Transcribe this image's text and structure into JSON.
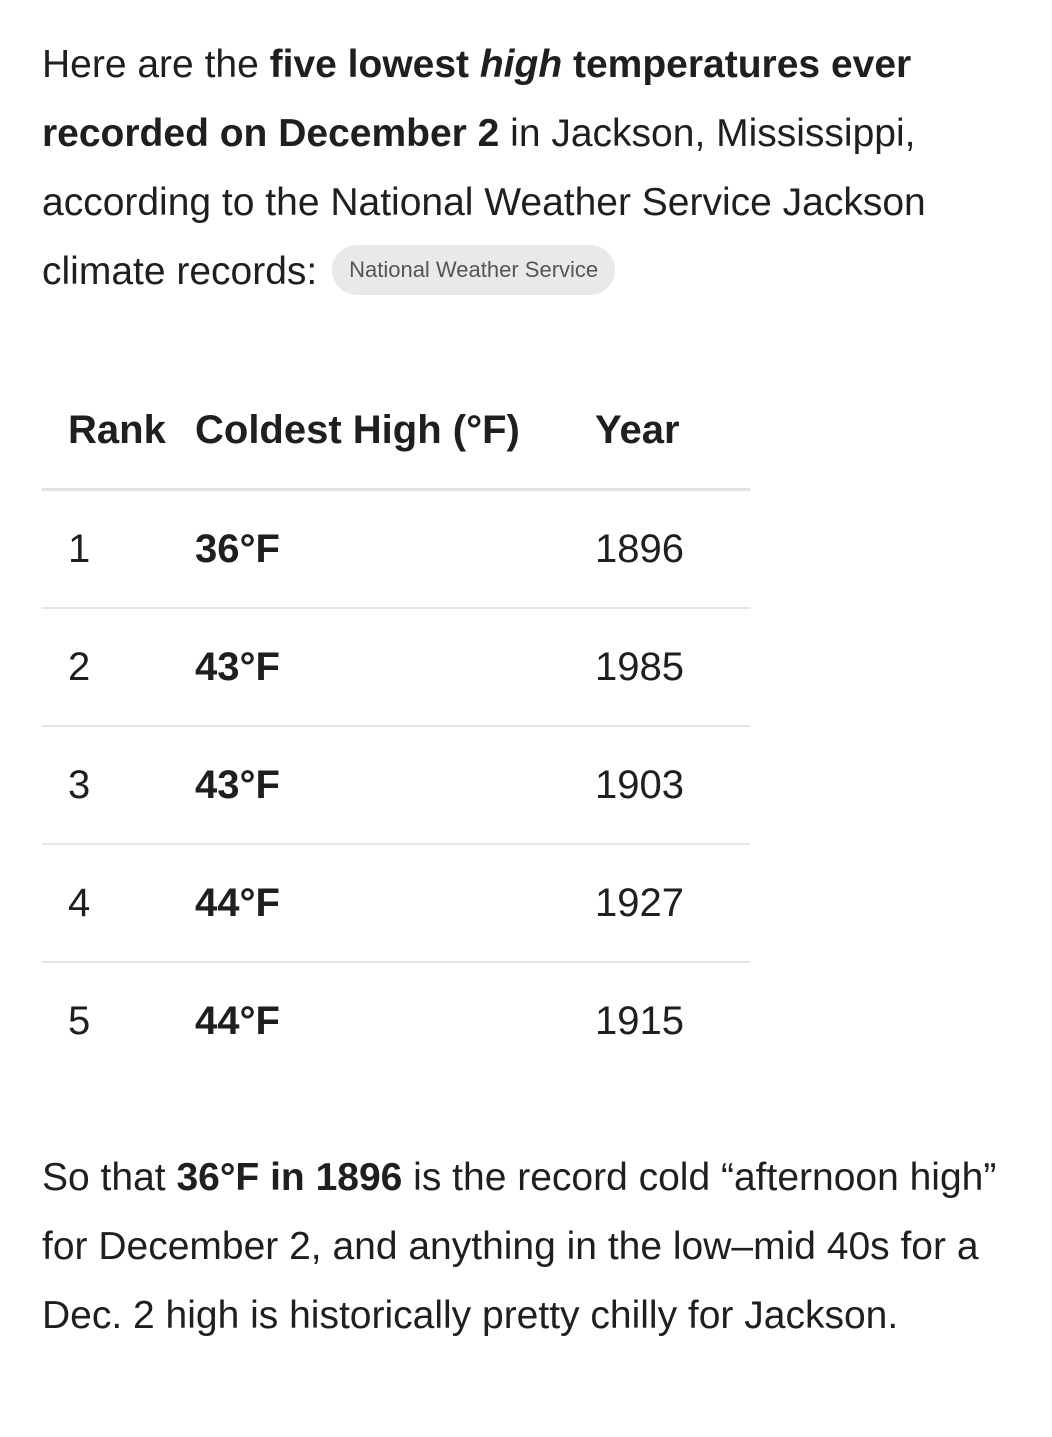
{
  "intro": {
    "runs": [
      {
        "text": "Here are the ",
        "style": "normal"
      },
      {
        "text": "five lowest ",
        "style": "bold"
      },
      {
        "text": "high",
        "style": "bold-italic"
      },
      {
        "text": " temperatures ever recorded on December 2",
        "style": "bold"
      },
      {
        "text": " in Jackson, Mississippi, according to the National Weather Service Jackson climate records: ",
        "style": "normal"
      }
    ],
    "source_chip": "National Weather Service"
  },
  "table": {
    "header": [
      "Rank",
      "Coldest High (°F)",
      "Year"
    ],
    "rows": [
      [
        "1",
        "36°F",
        "1896"
      ],
      [
        "2",
        "43°F",
        "1985"
      ],
      [
        "3",
        "43°F",
        "1903"
      ],
      [
        "4",
        "44°F",
        "1927"
      ],
      [
        "5",
        "44°F",
        "1915"
      ]
    ]
  },
  "outro": {
    "runs": [
      {
        "text": "So that ",
        "style": "normal"
      },
      {
        "text": "36°F in 1896",
        "style": "bold"
      },
      {
        "text": " is the record cold “afternoon high” for December 2, and anything in the low–mid 40s for a Dec. 2 high is historically pretty chilly for Jackson.",
        "style": "normal"
      }
    ]
  }
}
